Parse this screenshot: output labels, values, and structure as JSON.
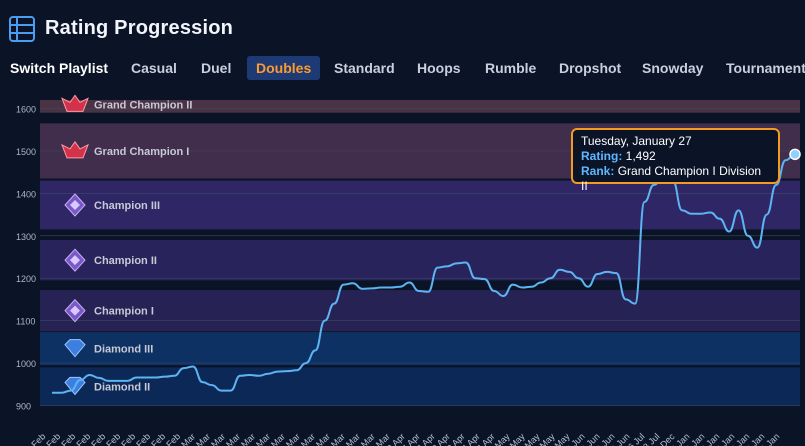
{
  "header": {
    "title": "Rating Progression",
    "icon": "table-list-icon"
  },
  "tabs": {
    "switch_label": "Switch Playlist",
    "items": [
      "Casual",
      "Duel",
      "Doubles",
      "Standard",
      "Hoops",
      "Rumble",
      "Dropshot",
      "Snowday",
      "Tournament"
    ],
    "active": "Doubles"
  },
  "tooltip": {
    "date": "Tuesday, January 27",
    "rating_label": "Rating:",
    "rating_value": "1,492",
    "rank_label": "Rank:",
    "rank_value": "Grand Champion I Division II"
  },
  "chart_data": {
    "type": "line",
    "ylim": [
      880,
      1620
    ],
    "yticks": [
      900,
      1000,
      1100,
      1200,
      1300,
      1400,
      1500,
      1600
    ],
    "grid": true,
    "line_color": "#5db4f2",
    "rank_bands": [
      {
        "name": "Diamond II",
        "min": 900,
        "max": 990,
        "color": "#0d2a5a",
        "icon": "diamond-rank-icon"
      },
      {
        "name": "Diamond III",
        "min": 995,
        "max": 1073,
        "color": "#0f3468",
        "icon": "diamond-rank-icon"
      },
      {
        "name": "Champion I",
        "min": 1075,
        "max": 1172,
        "color": "#2a2458",
        "icon": "champion-rank-icon"
      },
      {
        "name": "Champion II",
        "min": 1195,
        "max": 1290,
        "color": "#2d2560",
        "icon": "champion-rank-icon"
      },
      {
        "name": "Champion III",
        "min": 1315,
        "max": 1430,
        "color": "#33286a",
        "icon": "champion-rank-icon"
      },
      {
        "name": "Grand Champion I",
        "min": 1435,
        "max": 1565,
        "color": "#47304f",
        "icon": "grand-champion-rank-icon"
      },
      {
        "name": "Grand Champion II",
        "min": 1590,
        "max": 1620,
        "color": "#4f3648",
        "icon": "grand-champion-rank-icon"
      }
    ],
    "x_labels": [
      "2 Feb",
      "4 Feb",
      "6 Feb",
      "8 Feb",
      "10 Feb",
      "12 Feb",
      "14 Feb",
      "16 Feb",
      "18 Feb",
      "20 Feb",
      "22 Mar",
      "24 Mar",
      "26 Mar",
      "28 Mar",
      "2 Mar",
      "4 Mar",
      "6 Mar",
      "8 Mar",
      "10 Mar",
      "12 Mar",
      "14 Mar",
      "16 Mar",
      "18 Mar",
      "20 Mar",
      "22 Apr",
      "24 Apr",
      "26 Apr",
      "28 Apr",
      "2 Apr",
      "4 Apr",
      "6 Apr",
      "8 May",
      "10 May",
      "12 May",
      "14 May",
      "16 May",
      "18 Jun",
      "20 Jun",
      "22 Jun",
      "24 Jun",
      "26 Jul",
      "28 Jul",
      "30 Dec",
      "2 Jan",
      "4 Jan",
      "6 Jan",
      "8 Jan",
      "10 Jan",
      "12 Jan",
      "14 Jan"
    ],
    "values": [
      930,
      930,
      935,
      960,
      972,
      965,
      958,
      958,
      958,
      966,
      966,
      966,
      968,
      970,
      988,
      992,
      955,
      948,
      935,
      935,
      970,
      972,
      970,
      975,
      980,
      981,
      983,
      1000,
      1030,
      1100,
      1140,
      1185,
      1188,
      1175,
      1176,
      1178,
      1178,
      1180,
      1190,
      1170,
      1168,
      1225,
      1228,
      1235,
      1237,
      1200,
      1198,
      1170,
      1158,
      1185,
      1178,
      1180,
      1190,
      1200,
      1220,
      1215,
      1200,
      1180,
      1210,
      1215,
      1212,
      1150,
      1140,
      1380,
      1420,
      1440,
      1430,
      1360,
      1352,
      1352,
      1355,
      1340,
      1310,
      1360,
      1300,
      1272,
      1350,
      1420,
      1478,
      1492
    ]
  }
}
